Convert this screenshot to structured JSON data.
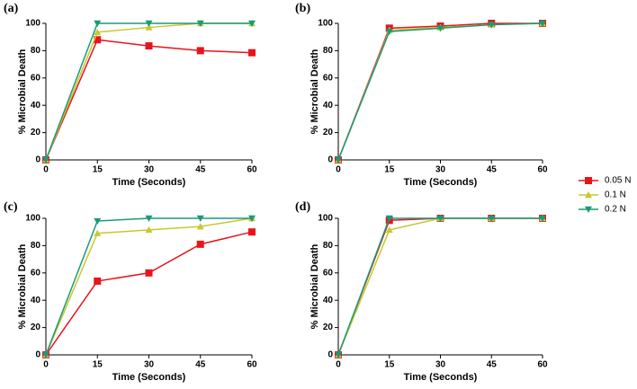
{
  "chart_data": [
    {
      "type": "line",
      "label": "(a)",
      "xlabel": "Time (Seconds)",
      "ylabel": "% Microbial Death",
      "x": [
        0,
        15,
        30,
        45,
        60
      ],
      "xlim": [
        0,
        60
      ],
      "xticks": [
        0,
        15,
        30,
        45,
        60
      ],
      "ylim": [
        0,
        100
      ],
      "yticks": [
        0,
        20,
        40,
        60,
        80,
        100
      ],
      "series": [
        {
          "name": "0.05 N",
          "color": "#e8141c",
          "marker": "square",
          "values": [
            0,
            88,
            83.5,
            80,
            78.5
          ]
        },
        {
          "name": "0.1 N",
          "color": "#c8c830",
          "marker": "triangle-up",
          "values": [
            0,
            93.5,
            97,
            100,
            100
          ]
        },
        {
          "name": "0.2 N",
          "color": "#1a9a7a",
          "marker": "triangle-down",
          "values": [
            0,
            100,
            100,
            100,
            100
          ]
        }
      ]
    },
    {
      "type": "line",
      "label": "(b)",
      "xlabel": "Time (Seconds)",
      "ylabel": "% Microbial Death",
      "x": [
        0,
        15,
        30,
        45,
        60
      ],
      "xlim": [
        0,
        60
      ],
      "xticks": [
        0,
        15,
        30,
        45,
        60
      ],
      "ylim": [
        0,
        100
      ],
      "yticks": [
        0,
        20,
        40,
        60,
        80,
        100
      ],
      "series": [
        {
          "name": "0.05 N",
          "color": "#e8141c",
          "marker": "square",
          "values": [
            0,
            96.5,
            98,
            100,
            100
          ]
        },
        {
          "name": "0.1 N",
          "color": "#c8c830",
          "marker": "triangle-up",
          "values": [
            0,
            95,
            97,
            99,
            100
          ]
        },
        {
          "name": "0.2 N",
          "color": "#1a9a7a",
          "marker": "triangle-down",
          "values": [
            0,
            94,
            96.5,
            99,
            100
          ]
        }
      ]
    },
    {
      "type": "line",
      "label": "(c)",
      "xlabel": "Time (Seconds)",
      "ylabel": "% Microbial Death",
      "x": [
        0,
        15,
        30,
        45,
        60
      ],
      "xlim": [
        0,
        60
      ],
      "xticks": [
        0,
        15,
        30,
        45,
        60
      ],
      "ylim": [
        0,
        100
      ],
      "yticks": [
        0,
        20,
        40,
        60,
        80,
        100
      ],
      "series": [
        {
          "name": "0.05 N",
          "color": "#e8141c",
          "marker": "square",
          "values": [
            0,
            54,
            60,
            81,
            90
          ]
        },
        {
          "name": "0.1 N",
          "color": "#c8c830",
          "marker": "triangle-up",
          "values": [
            0,
            89,
            91.5,
            94,
            100
          ]
        },
        {
          "name": "0.2 N",
          "color": "#1a9a7a",
          "marker": "triangle-down",
          "values": [
            0,
            98,
            100,
            100,
            100
          ]
        }
      ]
    },
    {
      "type": "line",
      "label": "(d)",
      "xlabel": "Time (Seconds)",
      "ylabel": "% Microbial Death",
      "x": [
        0,
        15,
        30,
        45,
        60
      ],
      "xlim": [
        0,
        60
      ],
      "xticks": [
        0,
        15,
        30,
        45,
        60
      ],
      "ylim": [
        0,
        100
      ],
      "yticks": [
        0,
        20,
        40,
        60,
        80,
        100
      ],
      "series": [
        {
          "name": "0.05 N",
          "color": "#e8141c",
          "marker": "square",
          "values": [
            0,
            98.5,
            100,
            100,
            100
          ]
        },
        {
          "name": "0.1 N",
          "color": "#c8c830",
          "marker": "triangle-up",
          "values": [
            0,
            91.5,
            100,
            100,
            100
          ]
        },
        {
          "name": "0.2 N",
          "color": "#1a9a7a",
          "marker": "triangle-down",
          "values": [
            0,
            100,
            100,
            100,
            100
          ]
        }
      ]
    }
  ]
}
